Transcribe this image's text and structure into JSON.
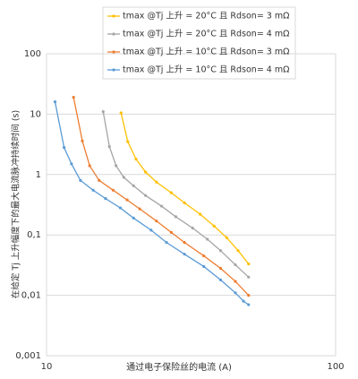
{
  "chart_data": {
    "type": "line",
    "x_label": "通过电子保险丝的电流 (A)",
    "y_label": "在给定 Tj 上升幅度下的最大电流脉冲持续时间 (s)",
    "xscale": "log",
    "yscale": "log",
    "grid": true,
    "legend": "top",
    "xlim": [
      10,
      100
    ],
    "xticks": [
      10,
      100
    ],
    "ylim": [
      0.001,
      100
    ],
    "yticks": [
      {
        "value": 0.001,
        "label": "0,001"
      },
      {
        "value": 0.01,
        "label": "0,01"
      },
      {
        "value": 0.1,
        "label": "0,1"
      },
      1,
      10,
      100
    ],
    "series": [
      {
        "name": "tmax @Tj 上升 = 20°C 且 Rdson= 3 mΩ",
        "color": "#ffc000",
        "x": [
          18.1,
          19.1,
          20.4,
          22,
          24,
          27,
          30,
          34,
          38,
          42,
          46,
          50
        ],
        "values": [
          10.5,
          3.5,
          1.8,
          1.1,
          0.75,
          0.5,
          0.34,
          0.22,
          0.14,
          0.09,
          0.055,
          0.033
        ]
      },
      {
        "name": "tmax @Tj 上升 = 20°C 且 Rdson= 4 mΩ",
        "color": "#a5a5a5",
        "x": [
          15.7,
          16.5,
          17.4,
          18.5,
          20,
          22,
          25,
          28,
          32,
          36,
          40,
          45,
          50
        ],
        "values": [
          11,
          2.9,
          1.4,
          0.9,
          0.65,
          0.45,
          0.3,
          0.2,
          0.13,
          0.085,
          0.055,
          0.032,
          0.02
        ]
      },
      {
        "name": "tmax @Tj 上升 = 10°C 且 Rdson= 3 mΩ",
        "color": "#ed7d31",
        "x": [
          12.4,
          13.3,
          14.1,
          15.2,
          17,
          19,
          21,
          24,
          27,
          30,
          35,
          40,
          45,
          50
        ],
        "values": [
          19,
          3.6,
          1.4,
          0.8,
          0.55,
          0.38,
          0.27,
          0.17,
          0.11,
          0.075,
          0.045,
          0.028,
          0.017,
          0.01
        ]
      },
      {
        "name": "tmax @Tj 上升 = 10°C 且 Rdson= 4 mΩ",
        "color": "#5b9bd5",
        "x": [
          10.7,
          11.5,
          12.2,
          13.1,
          14.5,
          16,
          18,
          20,
          23,
          26,
          30,
          35,
          40,
          45,
          48,
          50
        ],
        "values": [
          16,
          2.8,
          1.5,
          0.8,
          0.55,
          0.4,
          0.28,
          0.19,
          0.12,
          0.075,
          0.048,
          0.03,
          0.018,
          0.011,
          0.008,
          0.007
        ]
      }
    ]
  }
}
